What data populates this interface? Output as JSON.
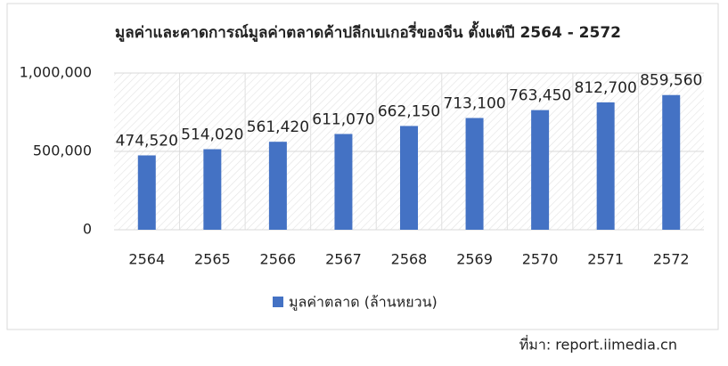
{
  "chart_data": {
    "type": "bar",
    "title": "มูลค่าและคาดการณ์มูลค่าตลาดค้าปลีกเบเกอรี่ของจีน ตั้งแต่ปี 2564 - 2572",
    "categories": [
      "2564",
      "2565",
      "2566",
      "2567",
      "2568",
      "2569",
      "2570",
      "2571",
      "2572"
    ],
    "series": [
      {
        "name": "มูลค่าตลาด (ล้านหยวน)",
        "color": "#4472c4",
        "values": [
          474520,
          514020,
          561420,
          611070,
          662150,
          713100,
          763450,
          812700,
          859560
        ],
        "value_labels": [
          "474,520",
          "514,020",
          "561,420",
          "611,070",
          "662,150",
          "713,100",
          "763,450",
          "812,700",
          "859,560"
        ]
      }
    ],
    "ylim": [
      0,
      1000000
    ],
    "yticks": [
      0,
      {
        "value": 500000,
        "label": "500,000"
      },
      {
        "value": 1000000,
        "label": "1,000,000"
      }
    ],
    "grid": true,
    "legend": "bottom",
    "source": "ที่มา: report.iimedia.cn"
  }
}
